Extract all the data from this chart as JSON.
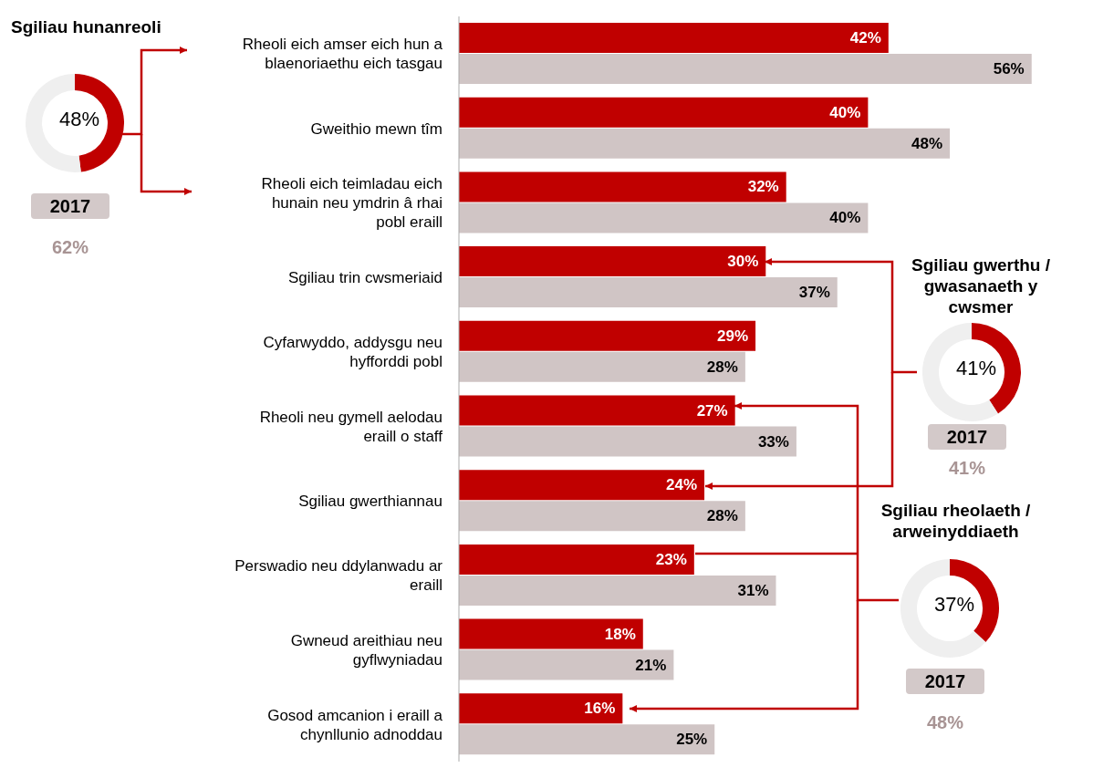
{
  "chart_data": [
    {
      "type": "bar",
      "orientation": "horizontal",
      "categories": [
        "Rheoli eich amser eich hun a blaenoriaethu eich tasgau",
        "Gweithio mewn tîm",
        "Rheoli eich teimladau eich hunain neu ymdrin â rhai pobl eraill",
        "Sgiliau trin cwsmeriaid",
        "Cyfarwyddo, addysgu neu hyfforddi pobl",
        "Rheoli neu gymell aelodau eraill o staff",
        "Sgiliau gwerthiannau",
        "Perswadio neu ddylanwadu ar eraill",
        "Gwneud areithiau neu gyflwyniadau",
        "Gosod amcanion i eraill a chynllunio adnoddau"
      ],
      "xlim": [
        0,
        62
      ],
      "series": [
        {
          "color": "#c00000",
          "values": [
            42,
            40,
            32,
            30,
            29,
            27,
            24,
            23,
            18,
            16
          ],
          "value_labels": [
            "42%",
            "40%",
            "32%",
            "30%",
            "29%",
            "27%",
            "24%",
            "23%",
            "18%",
            "16%"
          ]
        },
        {
          "color": "#d0c5c5",
          "values": [
            56,
            48,
            40,
            37,
            28,
            33,
            28,
            31,
            21,
            25
          ],
          "value_labels": [
            "56%",
            "48%",
            "40%",
            "37%",
            "28%",
            "33%",
            "28%",
            "31%",
            "21%",
            "25%"
          ]
        }
      ]
    },
    {
      "type": "donut",
      "title": "Sgiliau hunanreoli",
      "categories": [
        null,
        null
      ],
      "values": [
        48,
        52
      ],
      "colors": [
        "#c00000",
        "#efefef"
      ],
      "value_labels": [
        "48%",
        null
      ],
      "annotations": [
        "2017",
        "62%"
      ]
    },
    {
      "type": "donut",
      "title": "Sgiliau gwerthu / gwasanaeth y cwsmer",
      "categories": [
        null,
        null
      ],
      "values": [
        41,
        59
      ],
      "colors": [
        "#c00000",
        "#efefef"
      ],
      "value_labels": [
        "41%",
        null
      ],
      "annotations": [
        "2017",
        "41%"
      ]
    },
    {
      "type": "donut",
      "title": "Sgiliau rheolaeth / arweinyddiaeth",
      "categories": [
        null,
        null
      ],
      "values": [
        37,
        63
      ],
      "colors": [
        "#c00000",
        "#efefef"
      ],
      "value_labels": [
        "37%",
        null
      ],
      "annotations": [
        "2017",
        "48%"
      ]
    }
  ]
}
